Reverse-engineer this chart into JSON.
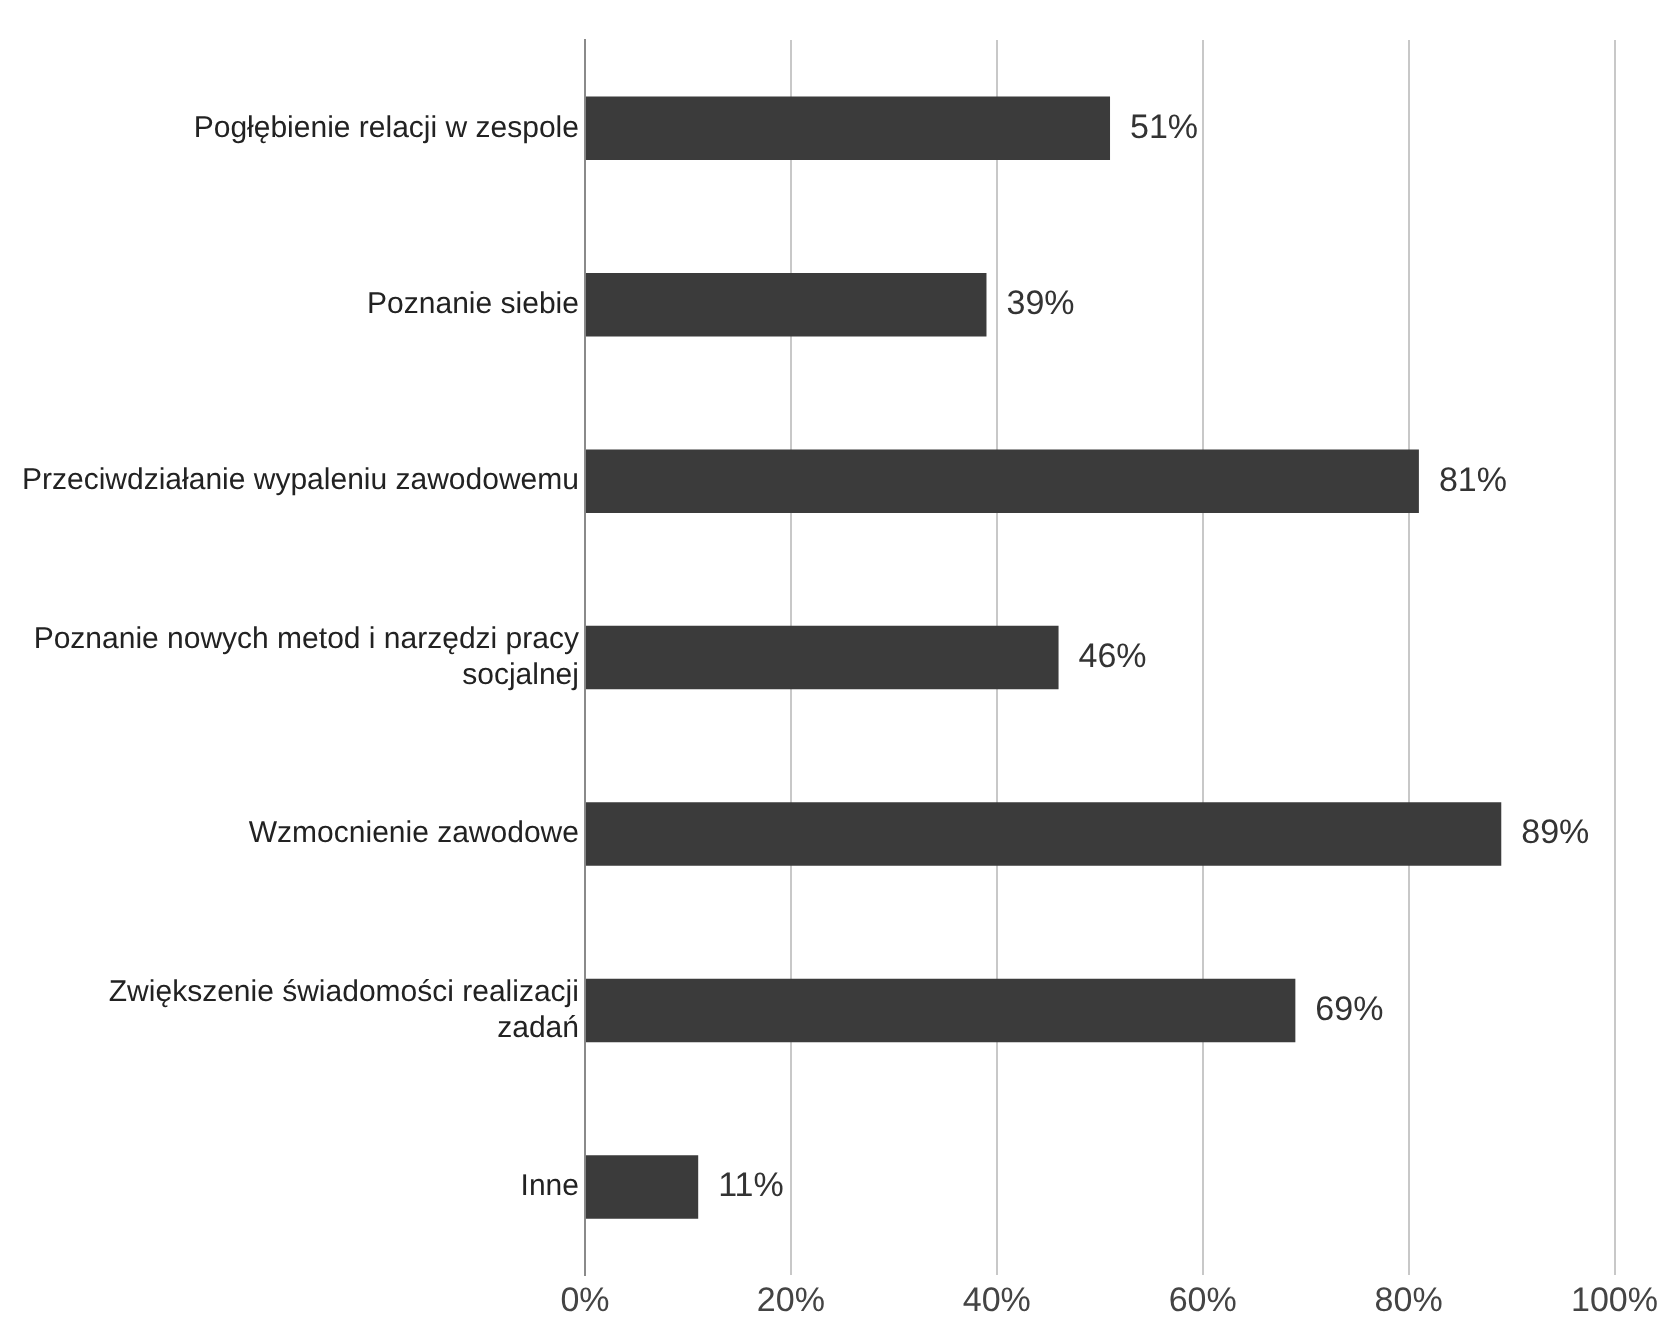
{
  "chart_data": {
    "type": "bar",
    "orientation": "horizontal",
    "categories": [
      "Pogłębienie relacji w zespole",
      "Poznanie siebie",
      "Przeciwdziałanie wypaleniu zawodowemu",
      "Poznanie nowych metod i narzędzi pracy socjalnej",
      "Wzmocnienie zawodowe",
      "Zwiększenie świadomości realizacji zadań",
      "Inne"
    ],
    "values": [
      51,
      39,
      81,
      46,
      89,
      69,
      11
    ],
    "value_labels": [
      "51%",
      "39%",
      "81%",
      "46%",
      "89%",
      "69%",
      "11%"
    ],
    "color": "#3b3b3b",
    "xlim": [
      0,
      100
    ],
    "xticks": [
      {
        "value": 0,
        "label": "0%"
      },
      {
        "value": 20,
        "label": "20%"
      },
      {
        "value": 40,
        "label": "40%"
      },
      {
        "value": 60,
        "label": "60%"
      },
      {
        "value": 80,
        "label": "80%"
      },
      {
        "value": 100,
        "label": "100%"
      }
    ],
    "grid": "x",
    "legend": false
  }
}
